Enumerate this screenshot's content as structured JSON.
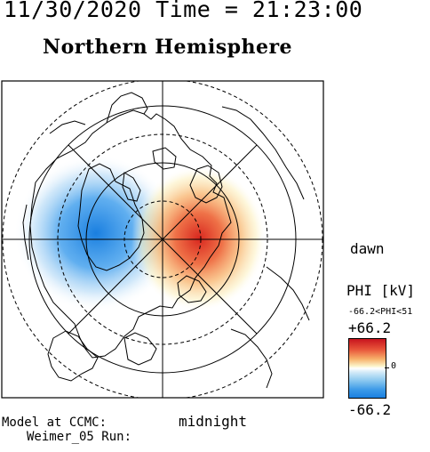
{
  "header": {
    "datetime": "11/30/2020 Time = 21:23:00",
    "title": "Northern Hemisphere"
  },
  "map": {
    "labels": {
      "dawn": "dawn",
      "midnight": "midnight"
    },
    "potential_pattern": {
      "dusk_cell_color": "#1a7fe0",
      "dawn_cell_color": "#e03a2a"
    }
  },
  "colorbar": {
    "title": "PHI [kV]",
    "range_text": "-66.2<PHI<51",
    "max_label": "+66.2",
    "zero_label": "0",
    "min_label": "-66.2",
    "colors": {
      "max": "#c8141e",
      "zero": "#ffffff",
      "min": "#1a7fe0"
    }
  },
  "footer": {
    "model_line": "Model at CCMC:",
    "run_line": "Weimer_05 Run:"
  }
}
